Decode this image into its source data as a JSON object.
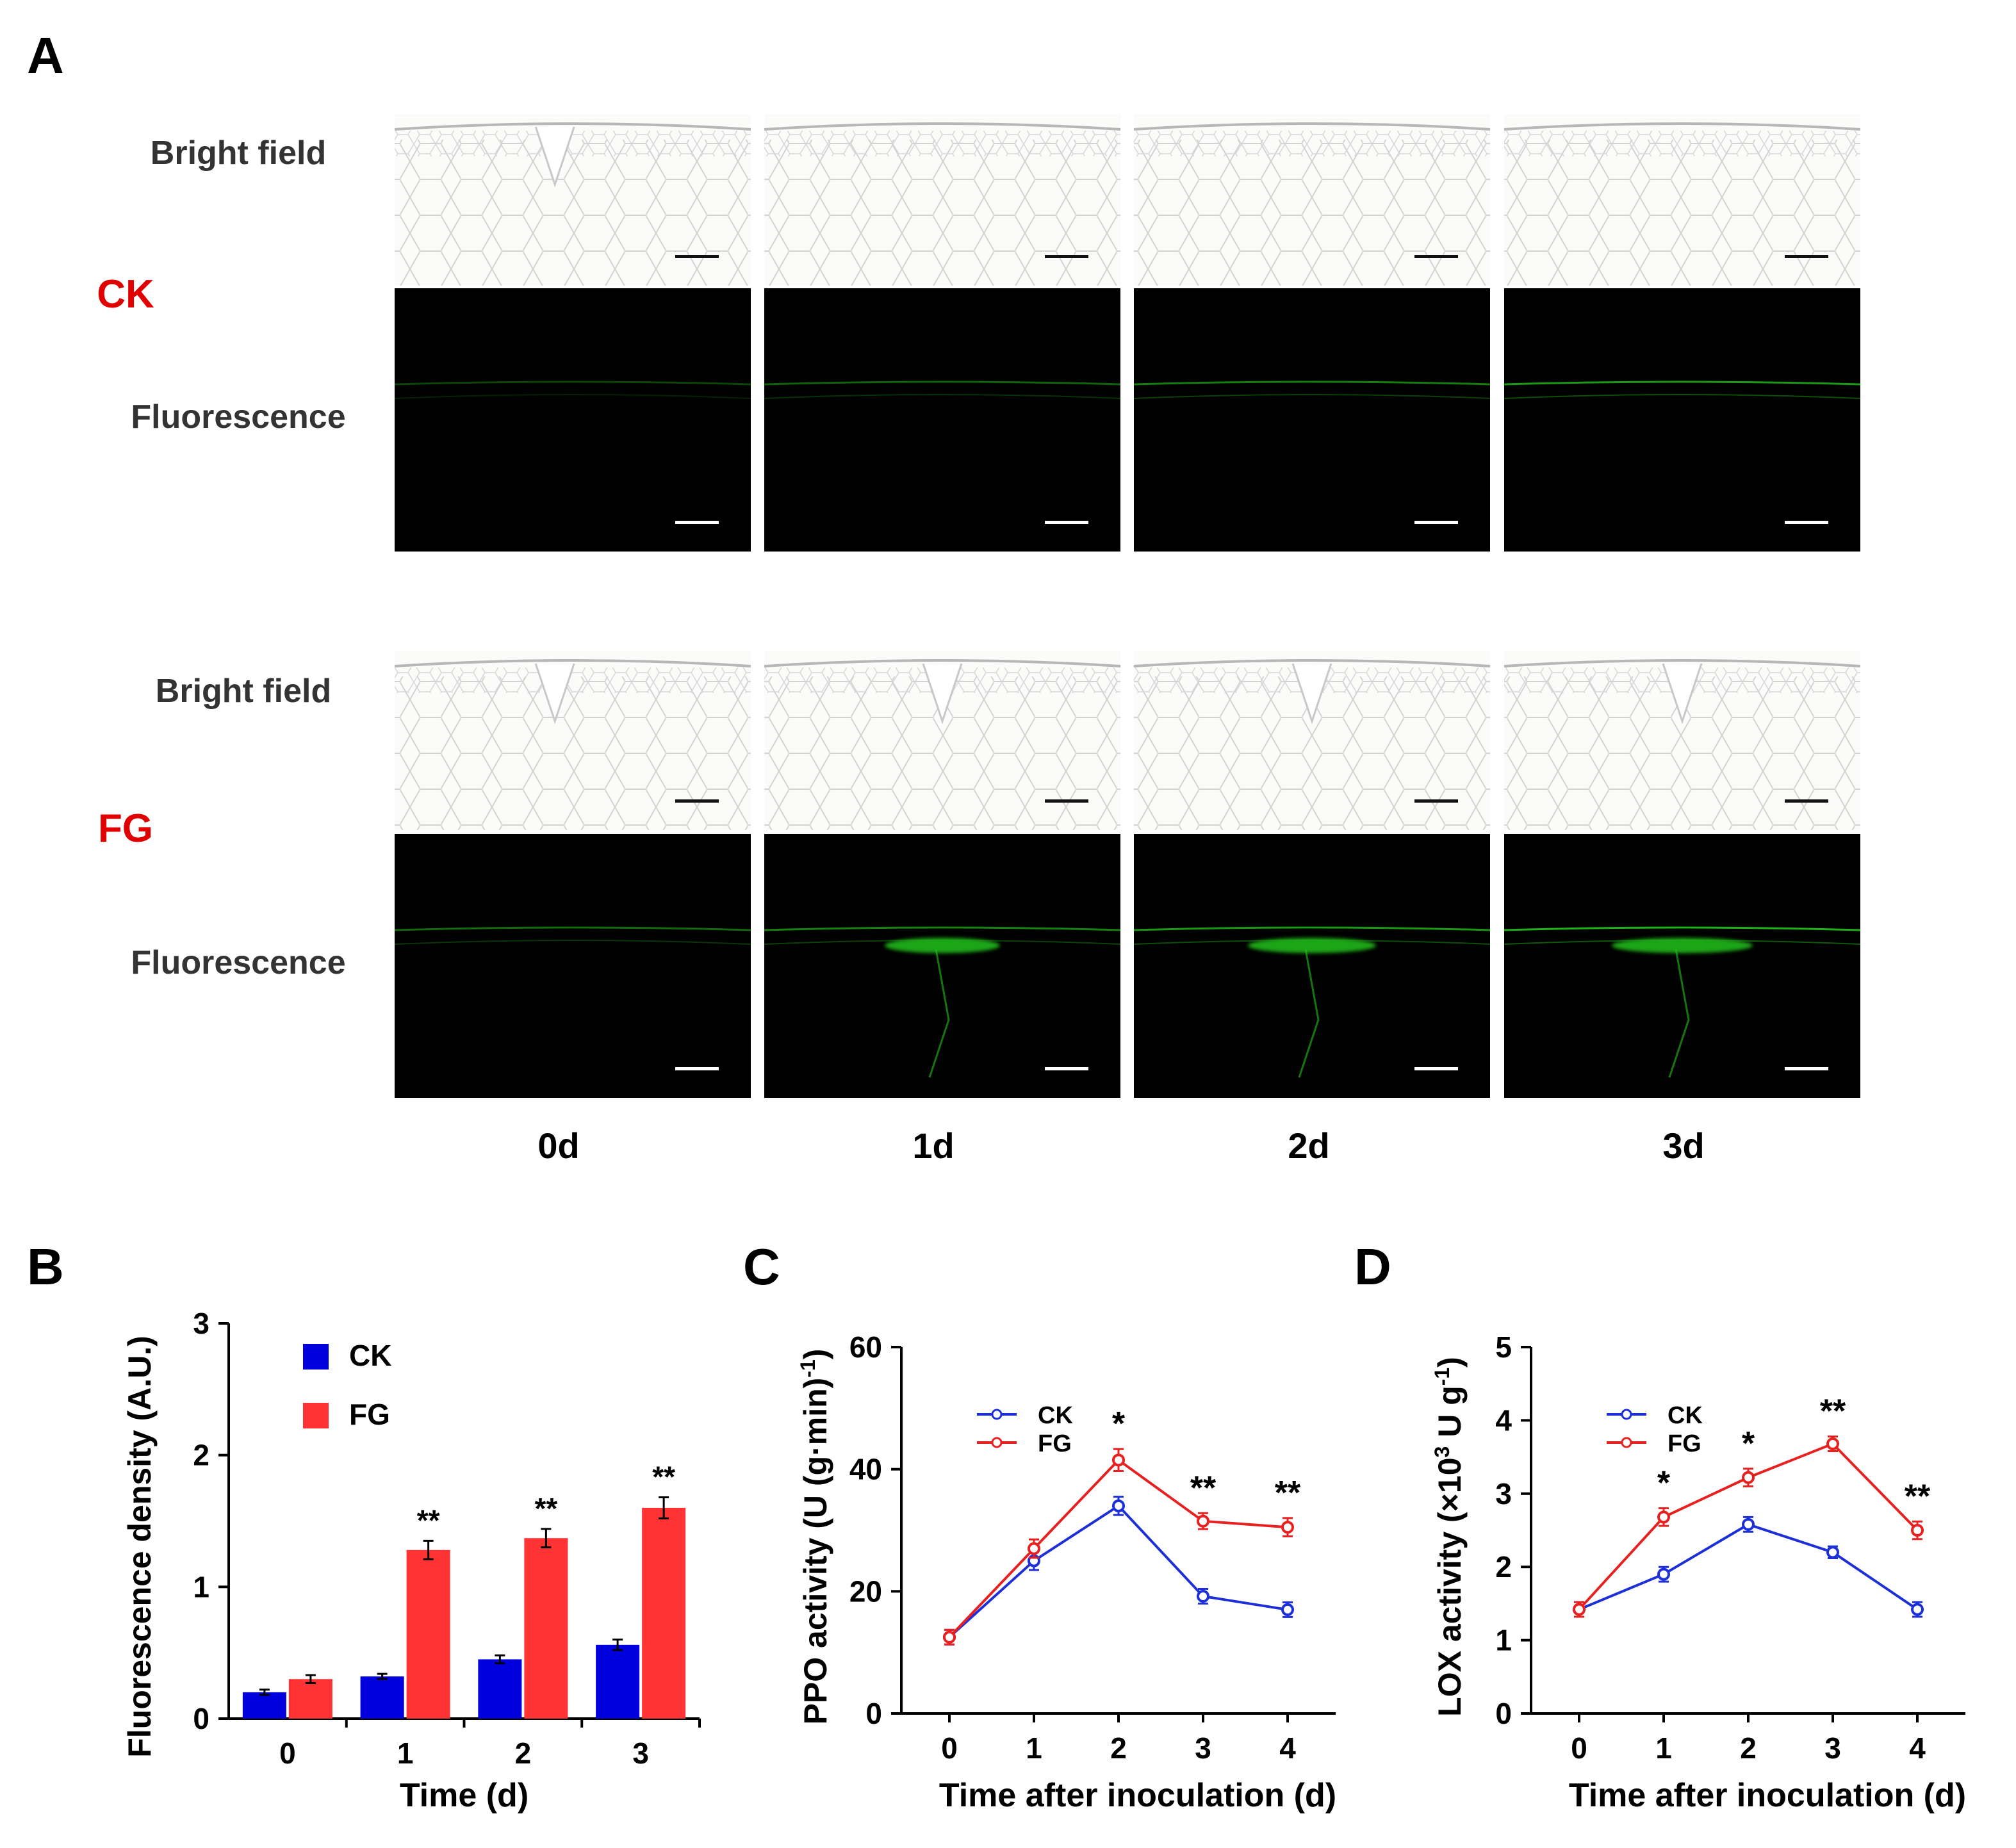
{
  "panel_letters": [
    "A",
    "B",
    "C",
    "D"
  ],
  "panel_a": {
    "groups": [
      {
        "name": "CK",
        "bright_label": "Bright field",
        "fluor_label": "Fluorescence"
      },
      {
        "name": "FG",
        "bright_label": "Bright field",
        "fluor_label": "Fluorescence"
      }
    ],
    "timepoints": [
      "0d",
      "1d",
      "2d",
      "3d"
    ],
    "colors": {
      "group_label": "#e00000",
      "row_label": "#333333",
      "fluor_bg": "#000000",
      "fluor_signal": "#22c21a",
      "bright_bg": "#fbfbfa",
      "bright_lines": "#bdbdbd"
    }
  },
  "chart_data": [
    {
      "type": "bar",
      "panel": "B",
      "xlabel": "Time (d)",
      "ylabel": "Fluorescence density (A.U.)",
      "categories": [
        "0",
        "1",
        "2",
        "3"
      ],
      "ylim": [
        0,
        3
      ],
      "yticks": [
        "0",
        "1",
        "2",
        "3"
      ],
      "series": [
        {
          "name": "CK",
          "color": "#0000dd",
          "values": [
            0.2,
            0.32,
            0.45,
            0.56
          ],
          "errors": [
            0.02,
            0.02,
            0.03,
            0.04
          ],
          "annotations": [
            "",
            "",
            "",
            ""
          ]
        },
        {
          "name": "FG",
          "color": "#ff3333",
          "values": [
            0.3,
            1.28,
            1.37,
            1.6
          ],
          "errors": [
            0.03,
            0.07,
            0.07,
            0.08
          ],
          "annotations": [
            "",
            "**",
            "**",
            "**"
          ]
        }
      ],
      "legend": "top-left"
    },
    {
      "type": "line",
      "panel": "C",
      "xlabel": "Time after inoculation (d)",
      "ylabel": "PPO activity (U (g·min)",
      "ylabel_sup": "-1",
      "ylabel_end": ")",
      "x": [
        "0",
        "1",
        "2",
        "3",
        "4"
      ],
      "ylim": [
        0,
        60
      ],
      "yticks": [
        "0",
        "20",
        "40",
        "60"
      ],
      "series": [
        {
          "name": "CK",
          "color": "#1c2fd8",
          "values": [
            12.5,
            25,
            34,
            19.2,
            17
          ],
          "errors": [
            1.2,
            1.5,
            1.5,
            1.2,
            1.2
          ]
        },
        {
          "name": "FG",
          "color": "#e8201f",
          "values": [
            12.5,
            27,
            41.5,
            31.5,
            30.5
          ],
          "errors": [
            1.2,
            1.5,
            1.8,
            1.3,
            1.5
          ]
        }
      ],
      "annotations": [
        "",
        "",
        "*",
        "**",
        "**"
      ],
      "legend": "top-left"
    },
    {
      "type": "line",
      "panel": "D",
      "xlabel": "Time after inoculation (d)",
      "ylabel": "LOX activity (×10",
      "ylabel_sup": "3",
      "ylabel_mid": " U g",
      "ylabel_sup2": "-1",
      "ylabel_end": ")",
      "x": [
        "0",
        "1",
        "2",
        "3",
        "4"
      ],
      "ylim": [
        0,
        5
      ],
      "yticks": [
        "0",
        "1",
        "2",
        "3",
        "4",
        "5"
      ],
      "series": [
        {
          "name": "CK",
          "color": "#1c2fd8",
          "values": [
            1.42,
            1.9,
            2.58,
            2.2,
            1.42
          ],
          "errors": [
            0.1,
            0.1,
            0.1,
            0.08,
            0.1
          ]
        },
        {
          "name": "FG",
          "color": "#e8201f",
          "values": [
            1.42,
            2.68,
            3.22,
            3.68,
            2.5
          ],
          "errors": [
            0.1,
            0.12,
            0.12,
            0.1,
            0.12
          ]
        }
      ],
      "annotations": [
        "",
        "*",
        "*",
        "**",
        "**"
      ],
      "legend": "top-left"
    }
  ]
}
